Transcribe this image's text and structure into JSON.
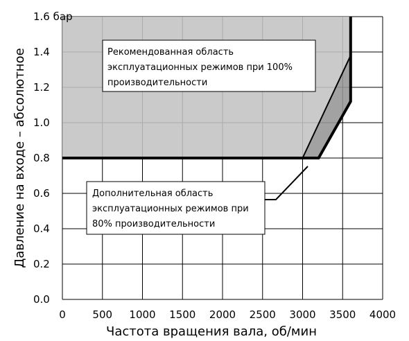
{
  "chart_data": {
    "type": "area",
    "xlabel": "Частота вращения вала, об/мин",
    "ylabel": "Давление на входе – абсолютное",
    "xlim": [
      0,
      4000
    ],
    "ylim": [
      0,
      1.6
    ],
    "x_ticks": [
      "0",
      "500",
      "1000",
      "1500",
      "2000",
      "2500",
      "3000",
      "3500",
      "4000"
    ],
    "y_ticks": [
      "0.0",
      "0.2",
      "0.4",
      "0.6",
      "0.8",
      "1.0",
      "1.2",
      "1.4",
      "1.6 бар"
    ],
    "grid": true,
    "series": [
      {
        "name": "Рекомендованная область эксплуатационных режимов при 100% производительности",
        "color": "#c3c3c3",
        "x": [
          0,
          3600,
          3600,
          3000,
          0
        ],
        "y": [
          1.6,
          1.6,
          1.38,
          0.8,
          0.8
        ]
      },
      {
        "name": "Дополнительная область эксплуатационных режимов при 80% производительности",
        "color": "#959595",
        "x": [
          3000,
          3600,
          3600,
          3200
        ],
        "y": [
          0.8,
          1.38,
          1.12,
          0.8
        ]
      }
    ],
    "boundary": {
      "color": "#000000",
      "x": [
        0,
        3200,
        3600,
        3600
      ],
      "y": [
        0.8,
        0.8,
        1.12,
        1.6
      ]
    },
    "annotations": [
      {
        "lines": [
          "Рекомендованная область",
          "эксплуатационных режимов при 100%",
          "производительности"
        ]
      },
      {
        "lines": [
          "Дополнительная область",
          "эксплуатационных режимов при",
          "80% производительности"
        ]
      }
    ]
  }
}
